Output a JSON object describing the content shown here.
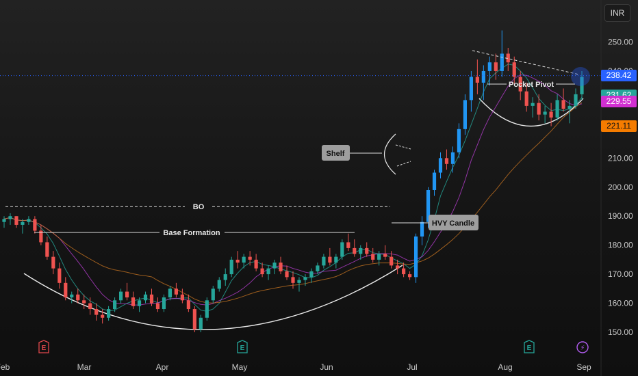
{
  "currency": "INR",
  "chart_data": {
    "type": "candlestick",
    "y_ticks": [
      150,
      160,
      170,
      180,
      190,
      200,
      210,
      220,
      230,
      240,
      250
    ],
    "y_tick_labels": [
      "150.00",
      "160.00",
      "170.00",
      "180.00",
      "190.00",
      "200.00",
      "210.00",
      "220.00",
      "230.00",
      "240.00",
      "250.00"
    ],
    "x_labels": [
      "Feb",
      "Mar",
      "Apr",
      "May",
      "Jun",
      "Jul",
      "Aug",
      "Sep"
    ],
    "price_badges": [
      {
        "label": "238.42",
        "value": 238.42,
        "color": "#2962ff"
      },
      {
        "label": "231.62",
        "value": 231.62,
        "color": "#26a69a"
      },
      {
        "label": "229.55",
        "value": 229.55,
        "color": "#d12fd1"
      },
      {
        "label": "221.11",
        "value": 221.11,
        "color": "#f57c00"
      }
    ],
    "annotations": {
      "bo": "BO",
      "base_formation": "Base Formation",
      "shelf": "Shelf",
      "hvy_candle": "HVY Candle",
      "pocket_pivot": "Pocket Pivot"
    },
    "event_markers": [
      {
        "label": "E",
        "month": "Mar",
        "color": "#e0474c"
      },
      {
        "label": "E",
        "month": "May",
        "color": "#26a69a"
      },
      {
        "label": "E",
        "month": "Aug",
        "color": "#26a69a"
      },
      {
        "label": "⚡",
        "month": "Sep",
        "color": "#b15cf0"
      }
    ],
    "breakout_level": 193.3,
    "current_price": 238.42,
    "candles": [
      [
        188,
        190,
        186,
        189
      ],
      [
        189,
        191,
        187,
        190
      ],
      [
        190,
        190,
        186,
        187
      ],
      [
        187,
        189,
        184,
        188
      ],
      [
        188,
        190,
        187,
        189
      ],
      [
        189,
        190,
        184,
        185
      ],
      [
        185,
        187,
        180,
        181
      ],
      [
        181,
        183,
        175,
        176
      ],
      [
        176,
        178,
        170,
        172
      ],
      [
        172,
        174,
        165,
        167
      ],
      [
        167,
        169,
        161,
        162
      ],
      [
        162,
        164,
        160,
        163
      ],
      [
        163,
        165,
        160,
        161
      ],
      [
        161,
        163,
        158,
        160
      ],
      [
        160,
        162,
        156,
        158
      ],
      [
        158,
        160,
        154,
        156
      ],
      [
        156,
        158,
        153,
        155
      ],
      [
        155,
        159,
        154,
        158
      ],
      [
        158,
        162,
        157,
        161
      ],
      [
        161,
        165,
        160,
        164
      ],
      [
        164,
        167,
        161,
        162
      ],
      [
        162,
        164,
        158,
        159
      ],
      [
        159,
        162,
        157,
        161
      ],
      [
        161,
        164,
        160,
        163
      ],
      [
        163,
        165,
        159,
        160
      ],
      [
        160,
        162,
        157,
        158
      ],
      [
        158,
        163,
        157,
        162
      ],
      [
        162,
        166,
        161,
        165
      ],
      [
        165,
        167,
        162,
        163
      ],
      [
        163,
        165,
        160,
        161
      ],
      [
        161,
        163,
        157,
        158
      ],
      [
        158,
        159,
        150,
        151
      ],
      [
        151,
        156,
        150,
        155
      ],
      [
        155,
        162,
        154,
        161
      ],
      [
        161,
        166,
        160,
        165
      ],
      [
        165,
        169,
        164,
        168
      ],
      [
        168,
        172,
        166,
        170
      ],
      [
        170,
        176,
        169,
        175
      ],
      [
        175,
        178,
        172,
        174
      ],
      [
        174,
        177,
        172,
        176
      ],
      [
        176,
        178,
        173,
        175
      ],
      [
        175,
        177,
        171,
        172
      ],
      [
        172,
        174,
        169,
        170
      ],
      [
        170,
        173,
        168,
        172
      ],
      [
        172,
        175,
        170,
        174
      ],
      [
        174,
        176,
        170,
        171
      ],
      [
        171,
        173,
        168,
        169
      ],
      [
        169,
        171,
        165,
        167
      ],
      [
        167,
        169,
        164,
        168
      ],
      [
        168,
        170,
        166,
        169
      ],
      [
        169,
        172,
        167,
        171
      ],
      [
        171,
        174,
        170,
        173
      ],
      [
        173,
        177,
        172,
        176
      ],
      [
        176,
        179,
        173,
        174
      ],
      [
        174,
        177,
        172,
        176
      ],
      [
        176,
        182,
        175,
        181
      ],
      [
        181,
        184,
        178,
        179
      ],
      [
        179,
        182,
        176,
        177
      ],
      [
        177,
        180,
        175,
        179
      ],
      [
        179,
        181,
        176,
        177
      ],
      [
        177,
        179,
        174,
        175
      ],
      [
        175,
        178,
        173,
        177
      ],
      [
        177,
        180,
        175,
        176
      ],
      [
        176,
        178,
        172,
        173
      ],
      [
        173,
        175,
        170,
        172
      ],
      [
        172,
        174,
        169,
        170
      ],
      [
        170,
        171,
        168,
        169
      ],
      [
        169,
        184,
        167,
        183
      ],
      [
        183,
        190,
        180,
        188
      ],
      [
        188,
        200,
        186,
        199
      ],
      [
        199,
        206,
        197,
        205
      ],
      [
        205,
        212,
        203,
        210
      ],
      [
        210,
        213,
        206,
        208
      ],
      [
        208,
        214,
        205,
        212
      ],
      [
        212,
        222,
        210,
        220
      ],
      [
        220,
        232,
        218,
        230
      ],
      [
        230,
        240,
        226,
        238
      ],
      [
        238,
        244,
        232,
        236
      ],
      [
        236,
        242,
        230,
        240
      ],
      [
        240,
        245,
        235,
        243
      ],
      [
        243,
        246,
        237,
        240
      ],
      [
        240,
        254,
        238,
        246
      ],
      [
        246,
        248,
        240,
        243
      ],
      [
        243,
        245,
        235,
        238
      ],
      [
        238,
        240,
        230,
        233
      ],
      [
        233,
        236,
        226,
        228
      ],
      [
        228,
        231,
        224,
        229
      ],
      [
        229,
        232,
        223,
        225
      ],
      [
        225,
        228,
        222,
        226
      ],
      [
        226,
        229,
        221,
        224
      ],
      [
        224,
        232,
        223,
        230
      ],
      [
        230,
        234,
        226,
        227
      ],
      [
        227,
        230,
        222,
        228
      ],
      [
        228,
        234,
        227,
        232
      ],
      [
        232,
        240,
        230,
        238
      ]
    ]
  }
}
